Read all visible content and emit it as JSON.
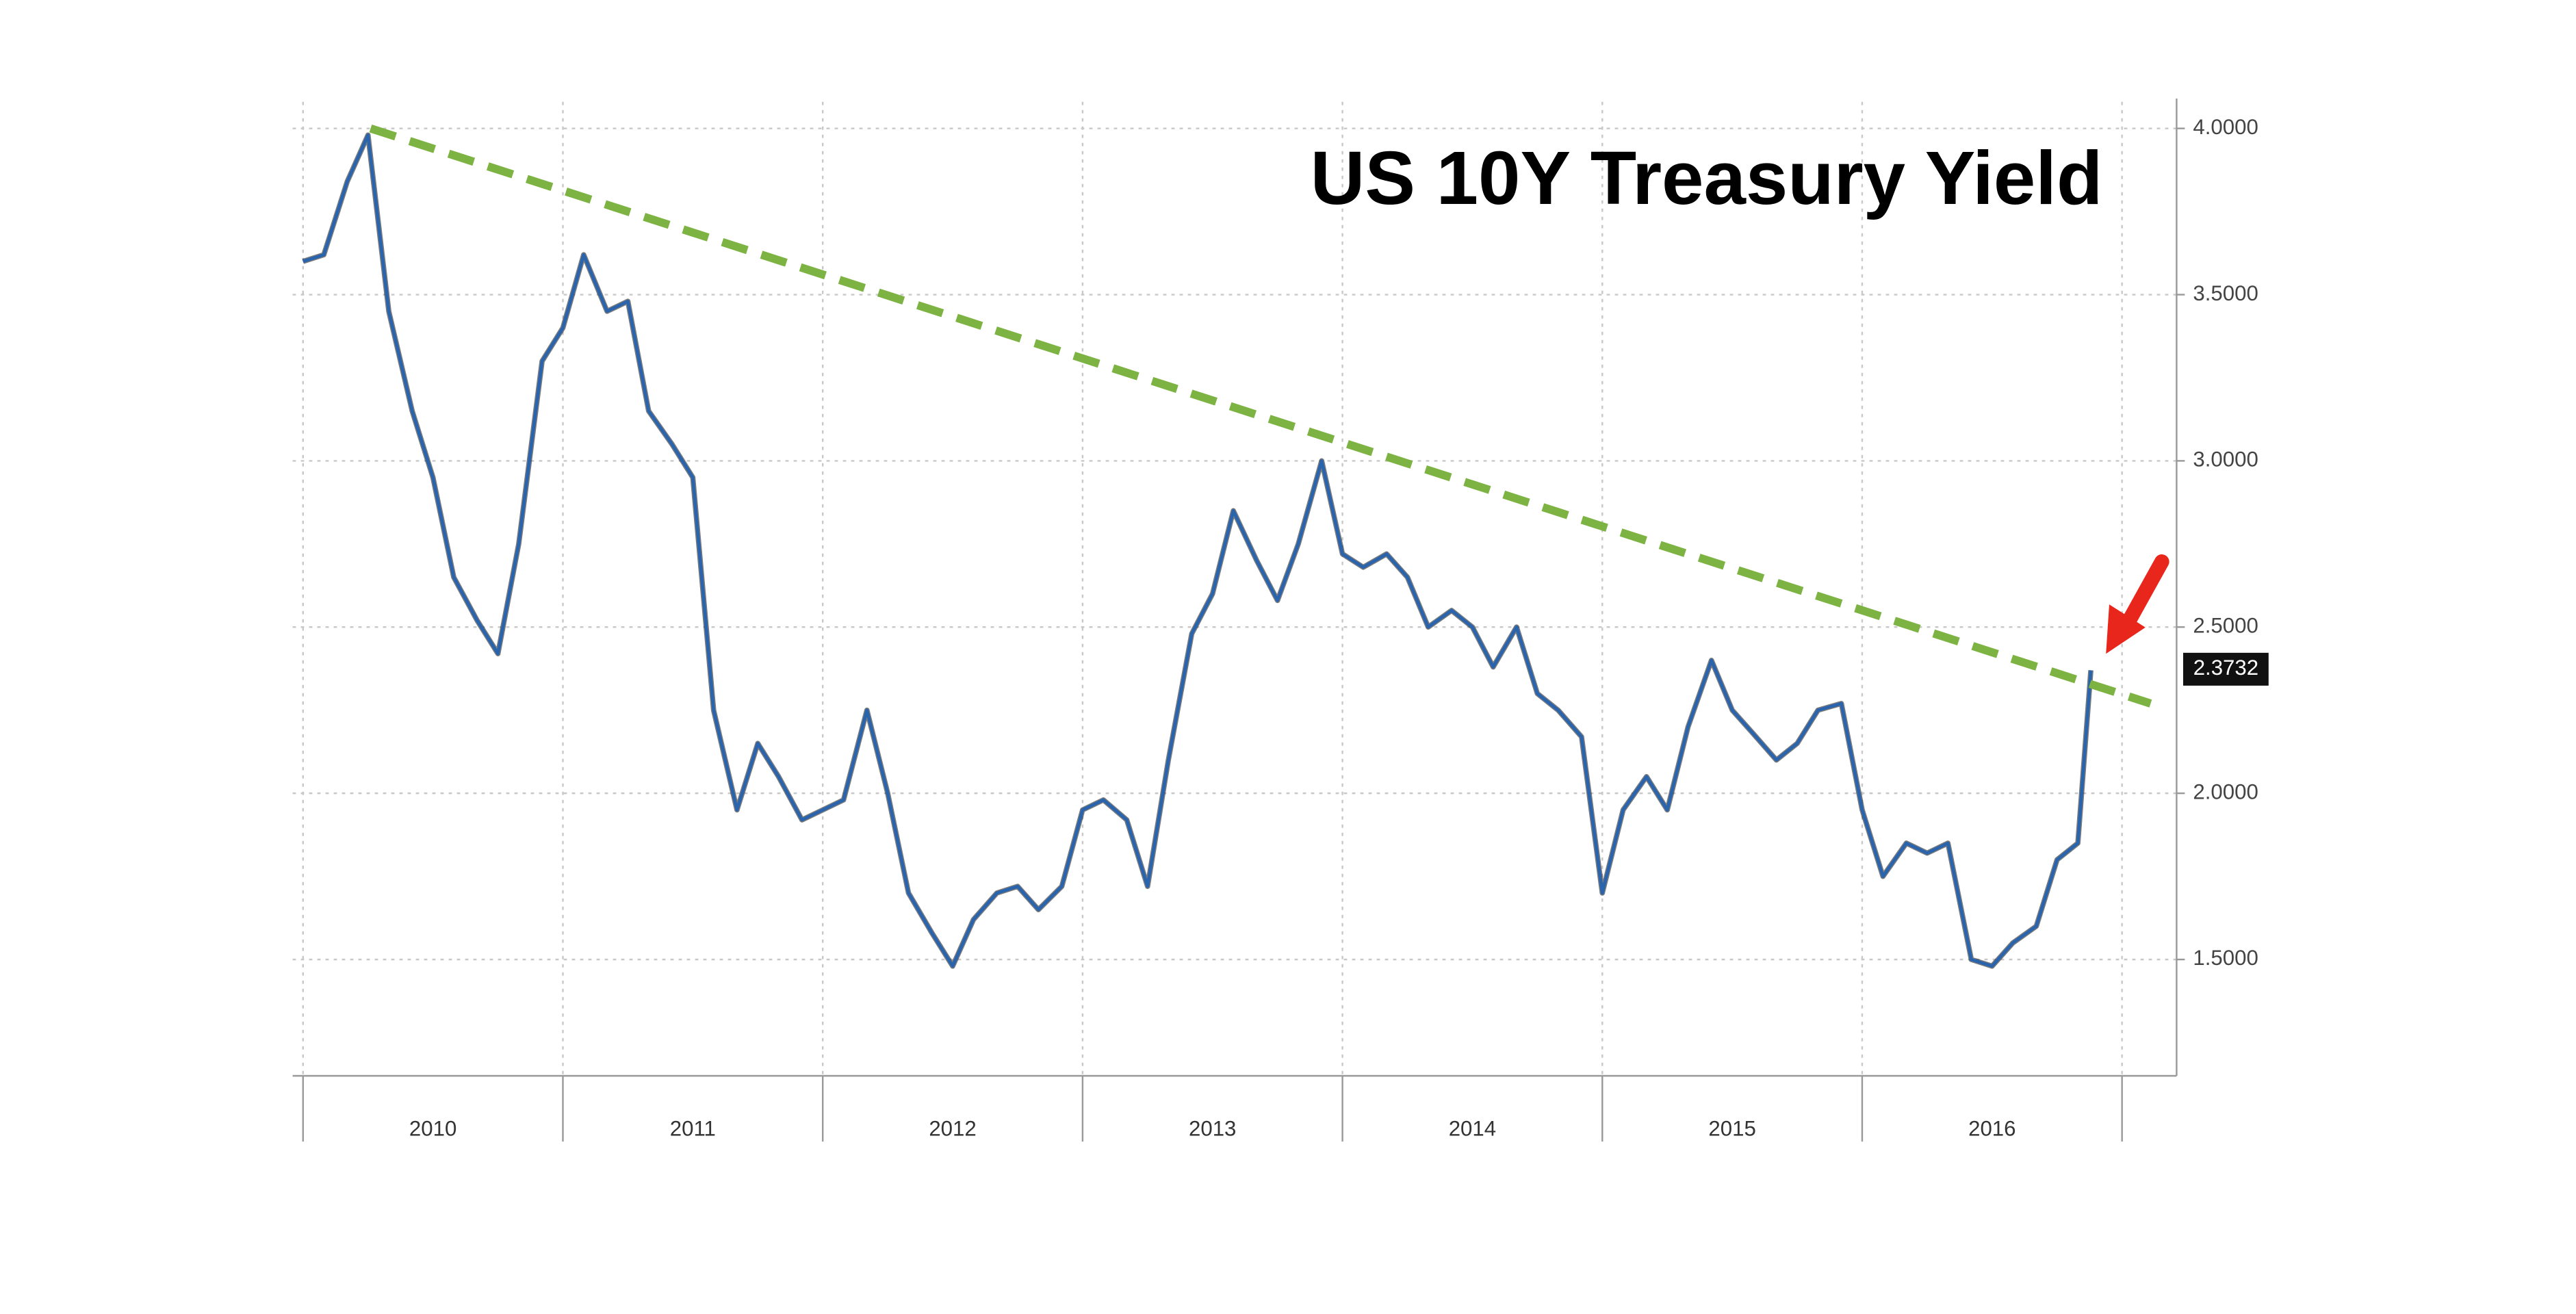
{
  "chart_data": {
    "type": "line",
    "title": "US 10Y Treasury Yield",
    "x": [
      2010.0,
      2010.08,
      2010.17,
      2010.25,
      2010.33,
      2010.42,
      2010.5,
      2010.58,
      2010.67,
      2010.75,
      2010.83,
      2010.92,
      2011.0,
      2011.08,
      2011.17,
      2011.25,
      2011.33,
      2011.42,
      2011.5,
      2011.58,
      2011.67,
      2011.75,
      2011.83,
      2011.92,
      2012.0,
      2012.08,
      2012.17,
      2012.25,
      2012.33,
      2012.42,
      2012.5,
      2012.58,
      2012.67,
      2012.75,
      2012.83,
      2012.92,
      2013.0,
      2013.08,
      2013.17,
      2013.25,
      2013.33,
      2013.42,
      2013.5,
      2013.58,
      2013.67,
      2013.75,
      2013.83,
      2013.92,
      2014.0,
      2014.08,
      2014.17,
      2014.25,
      2014.33,
      2014.42,
      2014.5,
      2014.58,
      2014.67,
      2014.75,
      2014.83,
      2014.92,
      2015.0,
      2015.08,
      2015.17,
      2015.25,
      2015.33,
      2015.42,
      2015.5,
      2015.58,
      2015.67,
      2015.75,
      2015.83,
      2015.92,
      2016.0,
      2016.08,
      2016.17,
      2016.25,
      2016.33,
      2016.42,
      2016.5,
      2016.58,
      2016.67,
      2016.75,
      2016.83,
      2016.88
    ],
    "series": [
      {
        "name": "US 10Y",
        "color": "#2a64ad",
        "values": [
          3.6,
          3.62,
          3.84,
          3.98,
          3.45,
          3.15,
          2.95,
          2.65,
          2.52,
          2.42,
          2.75,
          3.3,
          3.4,
          3.62,
          3.45,
          3.48,
          3.15,
          3.05,
          2.95,
          2.25,
          1.95,
          2.15,
          2.05,
          1.92,
          1.95,
          1.98,
          2.25,
          2.0,
          1.7,
          1.58,
          1.48,
          1.62,
          1.7,
          1.72,
          1.65,
          1.72,
          1.95,
          1.98,
          1.92,
          1.72,
          2.1,
          2.48,
          2.6,
          2.85,
          2.7,
          2.58,
          2.75,
          3.0,
          2.72,
          2.68,
          2.72,
          2.65,
          2.5,
          2.55,
          2.5,
          2.38,
          2.5,
          2.3,
          2.25,
          2.17,
          1.7,
          1.95,
          2.05,
          1.95,
          2.2,
          2.4,
          2.25,
          2.18,
          2.1,
          2.15,
          2.25,
          2.27,
          1.95,
          1.75,
          1.85,
          1.82,
          1.85,
          1.5,
          1.48,
          1.55,
          1.6,
          1.8,
          1.85,
          2.37
        ]
      }
    ],
    "trendline": {
      "x": [
        2010.26,
        2017.11
      ],
      "values": [
        4.0,
        2.27
      ],
      "color": "#7cb342"
    },
    "last_value": 2.3732,
    "xlim": [
      2009.96,
      2017.21
    ],
    "xticks": [
      2010,
      2011,
      2012,
      2013,
      2014,
      2015,
      2016
    ],
    "ylim": [
      1.15,
      4.08
    ],
    "yticks": [
      {
        "value": 1.5,
        "label": "1.5000"
      },
      {
        "value": 2,
        "label": "2.0000"
      },
      {
        "value": 2.5,
        "label": "2.5000"
      },
      {
        "value": 3,
        "label": "3.0000"
      },
      {
        "value": 3.5,
        "label": "3.5000"
      },
      {
        "value": 4,
        "label": "4.0000"
      }
    ],
    "grid": true
  }
}
